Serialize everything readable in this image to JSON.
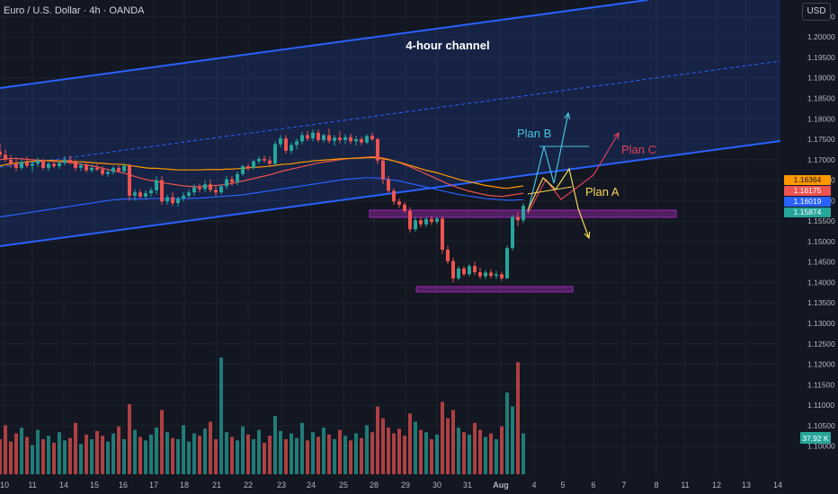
{
  "title": "Euro / U.S. Dollar · 4h · OANDA",
  "currency_button": "USD",
  "colors": {
    "background": "#131722",
    "grid": "#1e222d",
    "up": "#26a69a",
    "down": "#ef5350",
    "channel": "#2962ff",
    "plan_a": "#f7d75b",
    "plan_b": "#45c4e0",
    "plan_c": "#e0405a",
    "zone": "#9c27b0"
  },
  "annotations": {
    "channel_label": "4-hour channel",
    "plan_a": "Plan A",
    "plan_b": "Plan B",
    "plan_c": "Plan C"
  },
  "chart_data": {
    "type": "candlestick",
    "symbol": "EUR/USD",
    "timeframe": "4h",
    "ylim": [
      1.0975,
      1.2075
    ],
    "price_ticks": [
      1.1,
      1.105,
      1.11,
      1.115,
      1.12,
      1.125,
      1.13,
      1.135,
      1.14,
      1.145,
      1.15,
      1.155,
      1.16,
      1.165,
      1.17,
      1.175,
      1.18,
      1.185,
      1.19,
      1.195,
      1.2,
      1.205
    ],
    "x_ticks": [
      "10",
      "11",
      "14",
      "15",
      "16",
      "17",
      "18",
      "21",
      "22",
      "23",
      "24",
      "25",
      "28",
      "29",
      "30",
      "31",
      "Aug",
      "4",
      "5",
      "6",
      "7",
      "8",
      "11",
      "12",
      "13",
      "14"
    ],
    "price_labels": [
      {
        "value": "1.16364",
        "color": "#ff9800"
      },
      {
        "value": "1.16175",
        "color": "#ef5350"
      },
      {
        "value": "1.16019",
        "color": "#2962ff"
      },
      {
        "value": "1.15874",
        "color": "#26a69a"
      }
    ],
    "volume_label": "37.92 K",
    "candles": [
      [
        1.172,
        1.174,
        1.1705,
        1.1712
      ],
      [
        1.1712,
        1.1725,
        1.1695,
        1.17
      ],
      [
        1.17,
        1.1712,
        1.168,
        1.169
      ],
      [
        1.169,
        1.1705,
        1.1672,
        1.168
      ],
      [
        1.168,
        1.17,
        1.1675,
        1.1694
      ],
      [
        1.1694,
        1.1708,
        1.168,
        1.1685
      ],
      [
        1.1685,
        1.1695,
        1.167,
        1.169
      ],
      [
        1.169,
        1.1705,
        1.1683,
        1.1698
      ],
      [
        1.1698,
        1.1702,
        1.1675,
        1.168
      ],
      [
        1.168,
        1.1695,
        1.1672,
        1.169
      ],
      [
        1.169,
        1.17,
        1.168,
        1.1684
      ],
      [
        1.1684,
        1.1698,
        1.1678,
        1.1692
      ],
      [
        1.1692,
        1.1708,
        1.1686,
        1.17
      ],
      [
        1.17,
        1.171,
        1.1688,
        1.1694
      ],
      [
        1.1694,
        1.17,
        1.1672,
        1.168
      ],
      [
        1.168,
        1.1692,
        1.1672,
        1.1686
      ],
      [
        1.1686,
        1.1692,
        1.1668,
        1.1674
      ],
      [
        1.1674,
        1.1688,
        1.1668,
        1.168
      ],
      [
        1.168,
        1.169,
        1.1672,
        1.1676
      ],
      [
        1.1676,
        1.1684,
        1.166,
        1.1665
      ],
      [
        1.1665,
        1.1676,
        1.1658,
        1.167
      ],
      [
        1.167,
        1.1684,
        1.1664,
        1.168
      ],
      [
        1.168,
        1.1686,
        1.1668,
        1.1672
      ],
      [
        1.1672,
        1.169,
        1.1666,
        1.1685
      ],
      [
        1.1685,
        1.169,
        1.16,
        1.1612
      ],
      [
        1.1612,
        1.1628,
        1.16,
        1.162
      ],
      [
        1.162,
        1.1628,
        1.1605,
        1.161
      ],
      [
        1.161,
        1.1625,
        1.1603,
        1.1618
      ],
      [
        1.1618,
        1.1632,
        1.161,
        1.1625
      ],
      [
        1.1625,
        1.166,
        1.1615,
        1.165
      ],
      [
        1.165,
        1.166,
        1.159,
        1.1598
      ],
      [
        1.1598,
        1.1615,
        1.159,
        1.1608
      ],
      [
        1.1608,
        1.162,
        1.1588,
        1.1594
      ],
      [
        1.1594,
        1.161,
        1.1585,
        1.1605
      ],
      [
        1.1605,
        1.162,
        1.1598,
        1.1612
      ],
      [
        1.1612,
        1.1628,
        1.1605,
        1.162
      ],
      [
        1.162,
        1.164,
        1.1612,
        1.1632
      ],
      [
        1.1632,
        1.1642,
        1.162,
        1.1628
      ],
      [
        1.1628,
        1.165,
        1.162,
        1.164
      ],
      [
        1.164,
        1.1652,
        1.162,
        1.1626
      ],
      [
        1.1626,
        1.1638,
        1.1612,
        1.162
      ],
      [
        1.162,
        1.164,
        1.1615,
        1.1635
      ],
      [
        1.1635,
        1.166,
        1.1628,
        1.1652
      ],
      [
        1.1652,
        1.166,
        1.1636,
        1.1645
      ],
      [
        1.1645,
        1.1672,
        1.1638,
        1.1665
      ],
      [
        1.1665,
        1.1688,
        1.166,
        1.1684
      ],
      [
        1.1684,
        1.169,
        1.1672,
        1.168
      ],
      [
        1.168,
        1.17,
        1.1676,
        1.1696
      ],
      [
        1.1696,
        1.1708,
        1.169,
        1.1702
      ],
      [
        1.1702,
        1.171,
        1.1693,
        1.1698
      ],
      [
        1.1698,
        1.1708,
        1.1685,
        1.169
      ],
      [
        1.169,
        1.1745,
        1.1688,
        1.1738
      ],
      [
        1.1738,
        1.176,
        1.173,
        1.1752
      ],
      [
        1.1752,
        1.176,
        1.1715,
        1.1722
      ],
      [
        1.1722,
        1.1742,
        1.1715,
        1.1736
      ],
      [
        1.1736,
        1.1752,
        1.1725,
        1.1745
      ],
      [
        1.1745,
        1.1768,
        1.1738,
        1.176
      ],
      [
        1.176,
        1.177,
        1.1745,
        1.1752
      ],
      [
        1.1752,
        1.1774,
        1.1744,
        1.1766
      ],
      [
        1.1766,
        1.1774,
        1.1742,
        1.1748
      ],
      [
        1.1748,
        1.1764,
        1.1742,
        1.176
      ],
      [
        1.176,
        1.1776,
        1.174,
        1.1746
      ],
      [
        1.1746,
        1.176,
        1.1734,
        1.1754
      ],
      [
        1.1754,
        1.177,
        1.174,
        1.1748
      ],
      [
        1.1748,
        1.1762,
        1.1738,
        1.1755
      ],
      [
        1.1755,
        1.1764,
        1.1738,
        1.1745
      ],
      [
        1.1745,
        1.1758,
        1.1735,
        1.175
      ],
      [
        1.175,
        1.1756,
        1.1735,
        1.1742
      ],
      [
        1.1742,
        1.1762,
        1.1738,
        1.1758
      ],
      [
        1.1758,
        1.1766,
        1.1745,
        1.175
      ],
      [
        1.175,
        1.1754,
        1.169,
        1.1698
      ],
      [
        1.1698,
        1.1702,
        1.164,
        1.1652
      ],
      [
        1.1652,
        1.166,
        1.1618,
        1.1624
      ],
      [
        1.1624,
        1.163,
        1.159,
        1.1598
      ],
      [
        1.1598,
        1.1605,
        1.1582,
        1.159
      ],
      [
        1.159,
        1.1596,
        1.157,
        1.1575
      ],
      [
        1.1575,
        1.1584,
        1.1522,
        1.153
      ],
      [
        1.153,
        1.156,
        1.1524,
        1.1552
      ],
      [
        1.1552,
        1.156,
        1.1535,
        1.1542
      ],
      [
        1.1542,
        1.156,
        1.1535,
        1.1555
      ],
      [
        1.1555,
        1.1562,
        1.154,
        1.1548
      ],
      [
        1.1548,
        1.156,
        1.1542,
        1.1556
      ],
      [
        1.1556,
        1.1562,
        1.147,
        1.148
      ],
      [
        1.148,
        1.149,
        1.1445,
        1.1452
      ],
      [
        1.1452,
        1.146,
        1.14,
        1.141
      ],
      [
        1.141,
        1.144,
        1.1405,
        1.1434
      ],
      [
        1.1434,
        1.144,
        1.1415,
        1.142
      ],
      [
        1.142,
        1.1445,
        1.1415,
        1.144
      ],
      [
        1.144,
        1.145,
        1.1418,
        1.1425
      ],
      [
        1.1425,
        1.1436,
        1.1408,
        1.1415
      ],
      [
        1.1415,
        1.143,
        1.1408,
        1.1424
      ],
      [
        1.1424,
        1.1432,
        1.141,
        1.1416
      ],
      [
        1.1416,
        1.1428,
        1.1408,
        1.142
      ],
      [
        1.142,
        1.1426,
        1.1404,
        1.141
      ],
      [
        1.141,
        1.149,
        1.1408,
        1.1484
      ],
      [
        1.1484,
        1.1565,
        1.1478,
        1.156
      ],
      [
        1.156,
        1.1572,
        1.1538,
        1.1552
      ],
      [
        1.1552,
        1.1594,
        1.1545,
        1.1587
      ]
    ],
    "volumes": [
      0.3,
      0.42,
      0.28,
      0.35,
      0.4,
      0.32,
      0.25,
      0.38,
      0.3,
      0.33,
      0.27,
      0.36,
      0.29,
      0.31,
      0.44,
      0.26,
      0.34,
      0.3,
      0.37,
      0.33,
      0.28,
      0.35,
      0.41,
      0.3,
      0.6,
      0.38,
      0.32,
      0.29,
      0.34,
      0.4,
      0.55,
      0.36,
      0.31,
      0.3,
      0.42,
      0.28,
      0.35,
      0.33,
      0.39,
      0.45,
      0.3,
      1.0,
      0.36,
      0.32,
      0.29,
      0.41,
      0.34,
      0.3,
      0.38,
      0.27,
      0.33,
      0.5,
      0.37,
      0.3,
      0.35,
      0.31,
      0.44,
      0.29,
      0.36,
      0.32,
      0.4,
      0.34,
      0.3,
      0.38,
      0.33,
      0.29,
      0.35,
      0.31,
      0.42,
      0.36,
      0.58,
      0.48,
      0.4,
      0.35,
      0.39,
      0.33,
      0.52,
      0.45,
      0.38,
      0.36,
      0.3,
      0.34,
      0.62,
      0.48,
      0.55,
      0.4,
      0.36,
      0.34,
      0.44,
      0.38,
      0.32,
      0.35,
      0.3,
      0.41,
      0.7,
      0.58,
      0.96,
      0.35
    ],
    "ma_orange": [
      1.1685,
      1.1688,
      1.169,
      1.1692,
      1.1693,
      1.1695,
      1.1696,
      1.1697,
      1.1697,
      1.1698,
      1.1698,
      1.1697,
      1.1697,
      1.1696,
      1.1695,
      1.1695,
      1.1694,
      1.1693,
      1.1692,
      1.1691,
      1.169,
      1.1689,
      1.1689,
      1.1688,
      1.1686,
      1.1684,
      1.1682,
      1.168,
      1.1679,
      1.1679,
      1.1678,
      1.1677,
      1.1676,
      1.1675,
      1.1675,
      1.1675,
      1.1675,
      1.1675,
      1.1676,
      1.1676,
      1.1676,
      1.1676,
      1.1677,
      1.1677,
      1.1678,
      1.1679,
      1.168,
      1.1681,
      1.1682,
      1.1683,
      1.1684,
      1.1686,
      1.1688,
      1.1689,
      1.169,
      1.1692,
      1.1694,
      1.1695,
      1.1697,
      1.1698,
      1.1699,
      1.17,
      1.1701,
      1.1702,
      1.1703,
      1.1703,
      1.1704,
      1.1704,
      1.1705,
      1.1705,
      1.1704,
      1.1702,
      1.17,
      1.1697,
      1.1694,
      1.169,
      1.1686,
      1.1682,
      1.1678,
      1.1674,
      1.1671,
      1.1668,
      1.1664,
      1.166,
      1.1656,
      1.1652,
      1.1649,
      1.1646,
      1.1643,
      1.164,
      1.1637,
      1.1635,
      1.1633,
      1.1631,
      1.163,
      1.1632,
      1.1634,
      1.1636
    ],
    "ma_red": [
      1.17,
      1.1702,
      1.1703,
      1.1703,
      1.1702,
      1.1701,
      1.17,
      1.1699,
      1.1698,
      1.1697,
      1.1696,
      1.1695,
      1.1694,
      1.1693,
      1.1691,
      1.1689,
      1.1687,
      1.1685,
      1.1682,
      1.1679,
      1.1676,
      1.1673,
      1.167,
      1.1667,
      1.1663,
      1.1659,
      1.1655,
      1.1652,
      1.1649,
      1.1647,
      1.1644,
      1.1642,
      1.164,
      1.1638,
      1.1636,
      1.1635,
      1.1634,
      1.1634,
      1.1635,
      1.1636,
      1.1637,
      1.1638,
      1.164,
      1.1642,
      1.1645,
      1.1648,
      1.1651,
      1.1654,
      1.1657,
      1.166,
      1.1663,
      1.1667,
      1.1671,
      1.1674,
      1.1677,
      1.168,
      1.1683,
      1.1686,
      1.1689,
      1.1692,
      1.1694,
      1.1696,
      1.1698,
      1.17,
      1.1702,
      1.1703,
      1.1704,
      1.1705,
      1.1706,
      1.1707,
      1.1706,
      1.1704,
      1.1701,
      1.1697,
      1.1693,
      1.1688,
      1.1683,
      1.1677,
      1.1671,
      1.1665,
      1.1659,
      1.1653,
      1.1647,
      1.1641,
      1.1636,
      1.1631,
      1.1627,
      1.1623,
      1.162,
      1.1617,
      1.1614,
      1.1612,
      1.1611,
      1.161,
      1.1612,
      1.1614,
      1.1616,
      1.1618
    ],
    "ma_blue": [
      1.156,
      1.1562,
      1.1564,
      1.1566,
      1.1568,
      1.157,
      1.1572,
      1.1574,
      1.1576,
      1.1578,
      1.158,
      1.1582,
      1.1584,
      1.1586,
      1.1588,
      1.159,
      1.1592,
      1.1594,
      1.1596,
      1.1598,
      1.16,
      1.1602,
      1.1603,
      1.1604,
      1.1604,
      1.1604,
      1.1604,
      1.1604,
      1.1605,
      1.1605,
      1.1605,
      1.1605,
      1.1605,
      1.1605,
      1.1605,
      1.1605,
      1.1606,
      1.1606,
      1.1607,
      1.1608,
      1.1609,
      1.161,
      1.1611,
      1.1612,
      1.1613,
      1.1614,
      1.1616,
      1.1618,
      1.162,
      1.1622,
      1.1624,
      1.1626,
      1.1628,
      1.163,
      1.1632,
      1.1634,
      1.1636,
      1.1638,
      1.164,
      1.1642,
      1.1644,
      1.1646,
      1.1648,
      1.165,
      1.1652,
      1.1653,
      1.1654,
      1.1655,
      1.1656,
      1.1656,
      1.1655,
      1.1654,
      1.1652,
      1.165,
      1.1648,
      1.1645,
      1.1642,
      1.1639,
      1.1636,
      1.1633,
      1.163,
      1.1627,
      1.1624,
      1.1621,
      1.1618,
      1.1615,
      1.1613,
      1.1611,
      1.1609,
      1.1607,
      1.1605,
      1.1604,
      1.1603,
      1.1602,
      1.1601,
      1.1601,
      1.1602,
      1.1602
    ]
  }
}
